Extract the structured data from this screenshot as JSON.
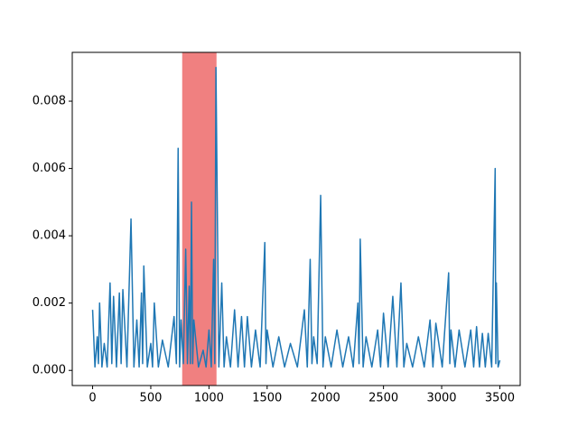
{
  "chart_data": {
    "type": "line",
    "color": "#1f77b4",
    "span": [
      770,
      1065
    ],
    "span_color": "#f08080",
    "x": [
      0,
      20,
      40,
      50,
      60,
      80,
      100,
      125,
      150,
      165,
      180,
      205,
      230,
      245,
      260,
      295,
      330,
      355,
      380,
      400,
      420,
      430,
      440,
      470,
      500,
      515,
      530,
      565,
      600,
      650,
      700,
      720,
      735,
      748,
      760,
      780,
      800,
      815,
      830,
      840,
      850,
      860,
      870,
      910,
      950,
      975,
      1000,
      1020,
      1040,
      1050,
      1060,
      1085,
      1110,
      1130,
      1150,
      1185,
      1220,
      1250,
      1280,
      1305,
      1330,
      1365,
      1400,
      1440,
      1480,
      1490,
      1500,
      1550,
      1600,
      1650,
      1700,
      1760,
      1820,
      1845,
      1870,
      1885,
      1900,
      1930,
      1960,
      1980,
      2000,
      2050,
      2100,
      2150,
      2200,
      2240,
      2280,
      2290,
      2300,
      2325,
      2350,
      2400,
      2450,
      2475,
      2500,
      2540,
      2580,
      2615,
      2650,
      2675,
      2700,
      2750,
      2800,
      2850,
      2900,
      2925,
      2950,
      3005,
      3060,
      3070,
      3080,
      3115,
      3150,
      3200,
      3250,
      3275,
      3300,
      3325,
      3350,
      3375,
      3400,
      3430,
      3460,
      3465,
      3470,
      3485,
      3500
    ],
    "values": [
      0.0018,
      0.0001,
      0.001,
      0.0002,
      0.002,
      0.0001,
      0.0008,
      0.0001,
      0.0026,
      0.0002,
      0.0022,
      0.0001,
      0.0023,
      0.0002,
      0.0024,
      0.0001,
      0.0045,
      0.0001,
      0.0015,
      0.0001,
      0.0023,
      0.0002,
      0.0031,
      0.0001,
      0.0008,
      0.0001,
      0.002,
      0.0001,
      0.0009,
      0.0001,
      0.0016,
      0.0002,
      0.0066,
      0.0001,
      0.0015,
      0.0002,
      0.0036,
      0.0002,
      0.0025,
      0.0002,
      0.005,
      0.0002,
      0.0015,
      0.0001,
      0.0006,
      0.0001,
      0.0012,
      0.0001,
      0.0033,
      0.0002,
      0.009,
      0.0001,
      0.0026,
      0.0001,
      0.001,
      0.0001,
      0.0018,
      0.0001,
      0.0016,
      0.0001,
      0.0016,
      0.0001,
      0.0012,
      0.0001,
      0.0038,
      0.0002,
      0.0012,
      0.0001,
      0.001,
      0.0001,
      0.0008,
      0.0001,
      0.0018,
      0.0001,
      0.0033,
      0.0002,
      0.001,
      0.0002,
      0.0052,
      0.0001,
      0.001,
      0.0001,
      0.0012,
      0.0001,
      0.001,
      0.0001,
      0.002,
      0.0002,
      0.0039,
      0.0001,
      0.001,
      0.0001,
      0.0012,
      0.0001,
      0.0017,
      0.0001,
      0.0022,
      0.0001,
      0.0026,
      0.0001,
      0.0008,
      0.0001,
      0.001,
      0.0001,
      0.0015,
      0.0001,
      0.0014,
      0.0001,
      0.0029,
      0.0002,
      0.0012,
      0.0001,
      0.0012,
      0.0001,
      0.0012,
      0.0001,
      0.0013,
      0.0001,
      0.0011,
      0.0001,
      0.0011,
      0.0001,
      0.006,
      0.0002,
      0.0026,
      0.0001,
      0.0003
    ],
    "xlim": [
      -175,
      3675
    ],
    "ylim": [
      -0.00045,
      0.00945
    ],
    "xticks": [
      0,
      500,
      1000,
      1500,
      2000,
      2500,
      3000,
      3500
    ],
    "yticks": [
      {
        "value": 0,
        "label": "0.000"
      },
      {
        "value": 0.002,
        "label": "0.002"
      },
      {
        "value": 0.004,
        "label": "0.004"
      },
      {
        "value": 0.006,
        "label": "0.006"
      },
      {
        "value": 0.008,
        "label": "0.008"
      }
    ]
  }
}
